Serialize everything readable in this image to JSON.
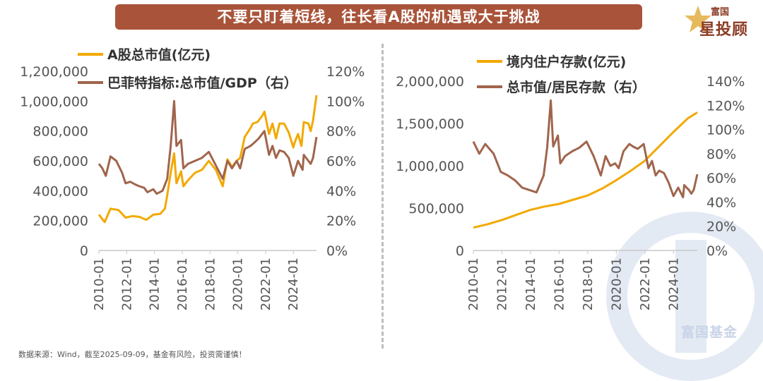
{
  "header": {
    "title": "不要只盯着短线，往长看A股的机遇或大于挑战",
    "logo_top": "富国",
    "logo_bottom": "星投顾"
  },
  "footer": {
    "source": "数据来源：Wind，截至2025-09-09，基金有风险，投资需谨慎！",
    "watermark": "富国基金"
  },
  "colors": {
    "gold": "#f2a900",
    "brown": "#a0654c",
    "axis": "#c8c8c8",
    "tick_text": "#555555",
    "legend_text": "#333333"
  },
  "chart_data": [
    {
      "type": "line",
      "x_ticks": [
        "2010-01",
        "2012-01",
        "2014-01",
        "2016-01",
        "2018-01",
        "2020-01",
        "2022-01",
        "2024-01"
      ],
      "x_range": [
        "2010-01",
        "2025-09"
      ],
      "y_left": {
        "ticks": [
          "0",
          "200,000",
          "400,000",
          "600,000",
          "800,000",
          "1,000,000",
          "1,200,000"
        ],
        "range": [
          0,
          1200000
        ]
      },
      "y_right": {
        "ticks": [
          "0%",
          "20%",
          "40%",
          "60%",
          "80%",
          "100%",
          "120%"
        ],
        "range": [
          0,
          1.2
        ]
      },
      "series": [
        {
          "name": "A股总市值(亿元)",
          "axis": "left",
          "color": "gold",
          "points": [
            [
              "2010-01",
              240000
            ],
            [
              "2010-06",
              190000
            ],
            [
              "2010-11",
              280000
            ],
            [
              "2011-06",
              270000
            ],
            [
              "2011-12",
              220000
            ],
            [
              "2012-06",
              230000
            ],
            [
              "2012-12",
              225000
            ],
            [
              "2013-06",
              205000
            ],
            [
              "2013-12",
              240000
            ],
            [
              "2014-06",
              245000
            ],
            [
              "2014-10",
              280000
            ],
            [
              "2014-12",
              370000
            ],
            [
              "2015-03",
              520000
            ],
            [
              "2015-06",
              650000
            ],
            [
              "2015-08",
              450000
            ],
            [
              "2015-12",
              530000
            ],
            [
              "2016-02",
              430000
            ],
            [
              "2016-06",
              470000
            ],
            [
              "2016-12",
              520000
            ],
            [
              "2017-06",
              540000
            ],
            [
              "2017-12",
              600000
            ],
            [
              "2018-06",
              540000
            ],
            [
              "2018-12",
              430000
            ],
            [
              "2019-04",
              610000
            ],
            [
              "2019-08",
              560000
            ],
            [
              "2019-12",
              600000
            ],
            [
              "2020-03",
              620000
            ],
            [
              "2020-07",
              760000
            ],
            [
              "2020-12",
              820000
            ],
            [
              "2021-02",
              850000
            ],
            [
              "2021-06",
              860000
            ],
            [
              "2021-10",
              900000
            ],
            [
              "2021-12",
              930000
            ],
            [
              "2022-04",
              780000
            ],
            [
              "2022-07",
              850000
            ],
            [
              "2022-10",
              750000
            ],
            [
              "2023-01",
              850000
            ],
            [
              "2023-05",
              850000
            ],
            [
              "2023-09",
              790000
            ],
            [
              "2024-01",
              690000
            ],
            [
              "2024-02",
              720000
            ],
            [
              "2024-05",
              780000
            ],
            [
              "2024-08",
              700000
            ],
            [
              "2024-10",
              860000
            ],
            [
              "2025-02",
              850000
            ],
            [
              "2025-04",
              800000
            ],
            [
              "2025-06",
              870000
            ],
            [
              "2025-09",
              1040000
            ]
          ]
        },
        {
          "name": "巴菲特指标:总市值/GDP（右）",
          "axis": "right",
          "color": "brown",
          "points": [
            [
              "2010-01",
              0.58
            ],
            [
              "2010-04",
              0.55
            ],
            [
              "2010-07",
              0.5
            ],
            [
              "2010-11",
              0.63
            ],
            [
              "2011-04",
              0.6
            ],
            [
              "2011-09",
              0.52
            ],
            [
              "2011-12",
              0.45
            ],
            [
              "2012-04",
              0.46
            ],
            [
              "2012-09",
              0.44
            ],
            [
              "2012-12",
              0.43
            ],
            [
              "2013-04",
              0.42
            ],
            [
              "2013-07",
              0.39
            ],
            [
              "2013-12",
              0.41
            ],
            [
              "2014-03",
              0.38
            ],
            [
              "2014-08",
              0.4
            ],
            [
              "2014-12",
              0.48
            ],
            [
              "2015-03",
              0.7
            ],
            [
              "2015-06",
              1.0
            ],
            [
              "2015-08",
              0.7
            ],
            [
              "2015-12",
              0.74
            ],
            [
              "2016-02",
              0.55
            ],
            [
              "2016-06",
              0.58
            ],
            [
              "2016-12",
              0.6
            ],
            [
              "2017-06",
              0.62
            ],
            [
              "2017-12",
              0.66
            ],
            [
              "2018-06",
              0.57
            ],
            [
              "2018-12",
              0.48
            ],
            [
              "2019-04",
              0.6
            ],
            [
              "2019-08",
              0.55
            ],
            [
              "2019-12",
              0.6
            ],
            [
              "2020-03",
              0.55
            ],
            [
              "2020-07",
              0.68
            ],
            [
              "2020-12",
              0.7
            ],
            [
              "2021-03",
              0.72
            ],
            [
              "2021-07",
              0.75
            ],
            [
              "2021-12",
              0.8
            ],
            [
              "2022-04",
              0.64
            ],
            [
              "2022-07",
              0.7
            ],
            [
              "2022-10",
              0.62
            ],
            [
              "2023-01",
              0.67
            ],
            [
              "2023-05",
              0.66
            ],
            [
              "2023-09",
              0.62
            ],
            [
              "2024-01",
              0.5
            ],
            [
              "2024-05",
              0.6
            ],
            [
              "2024-09",
              0.54
            ],
            [
              "2024-10",
              0.64
            ],
            [
              "2025-02",
              0.6
            ],
            [
              "2025-04",
              0.58
            ],
            [
              "2025-06",
              0.62
            ],
            [
              "2025-09",
              0.76
            ]
          ]
        }
      ]
    },
    {
      "type": "line",
      "x_ticks": [
        "2010-01",
        "2012-01",
        "2014-01",
        "2016-01",
        "2018-01",
        "2020-01",
        "2022-01",
        "2024-01"
      ],
      "x_range": [
        "2010-01",
        "2025-09"
      ],
      "y_left": {
        "ticks": [
          "0",
          "500,000",
          "1,000,000",
          "1,500,000",
          "2,000,000"
        ],
        "range": [
          0,
          2000000
        ]
      },
      "y_right": {
        "ticks": [
          "0%",
          "20%",
          "40%",
          "60%",
          "80%",
          "100%",
          "120%",
          "140%"
        ],
        "range": [
          0,
          1.4
        ]
      },
      "series": [
        {
          "name": "境内住户存款(亿元)",
          "axis": "left",
          "color": "gold",
          "points": [
            [
              "2010-01",
              270000
            ],
            [
              "2011-01",
              310000
            ],
            [
              "2012-01",
              360000
            ],
            [
              "2013-01",
              420000
            ],
            [
              "2014-01",
              480000
            ],
            [
              "2015-01",
              520000
            ],
            [
              "2016-01",
              550000
            ],
            [
              "2017-01",
              600000
            ],
            [
              "2018-01",
              650000
            ],
            [
              "2019-01",
              730000
            ],
            [
              "2020-01",
              830000
            ],
            [
              "2021-01",
              940000
            ],
            [
              "2022-01",
              1060000
            ],
            [
              "2023-01",
              1230000
            ],
            [
              "2024-01",
              1400000
            ],
            [
              "2025-01",
              1560000
            ],
            [
              "2025-09",
              1630000
            ]
          ]
        },
        {
          "name": "总市值/居民存款（右）",
          "axis": "right",
          "color": "brown",
          "points": [
            [
              "2010-01",
              0.9
            ],
            [
              "2010-06",
              0.8
            ],
            [
              "2010-11",
              0.88
            ],
            [
              "2011-06",
              0.8
            ],
            [
              "2011-12",
              0.65
            ],
            [
              "2012-06",
              0.62
            ],
            [
              "2012-12",
              0.58
            ],
            [
              "2013-06",
              0.52
            ],
            [
              "2013-12",
              0.5
            ],
            [
              "2014-06",
              0.48
            ],
            [
              "2014-12",
              0.62
            ],
            [
              "2015-03",
              0.85
            ],
            [
              "2015-06",
              1.24
            ],
            [
              "2015-08",
              0.86
            ],
            [
              "2015-12",
              0.95
            ],
            [
              "2016-02",
              0.72
            ],
            [
              "2016-06",
              0.78
            ],
            [
              "2016-12",
              0.82
            ],
            [
              "2017-06",
              0.85
            ],
            [
              "2017-12",
              0.9
            ],
            [
              "2018-06",
              0.78
            ],
            [
              "2018-12",
              0.62
            ],
            [
              "2019-04",
              0.78
            ],
            [
              "2019-08",
              0.7
            ],
            [
              "2019-12",
              0.72
            ],
            [
              "2020-03",
              0.68
            ],
            [
              "2020-07",
              0.82
            ],
            [
              "2020-12",
              0.88
            ],
            [
              "2021-03",
              0.86
            ],
            [
              "2021-07",
              0.84
            ],
            [
              "2021-12",
              0.88
            ],
            [
              "2022-04",
              0.68
            ],
            [
              "2022-07",
              0.74
            ],
            [
              "2022-10",
              0.62
            ],
            [
              "2023-01",
              0.66
            ],
            [
              "2023-05",
              0.64
            ],
            [
              "2023-09",
              0.56
            ],
            [
              "2024-01",
              0.45
            ],
            [
              "2024-05",
              0.52
            ],
            [
              "2024-09",
              0.44
            ],
            [
              "2024-10",
              0.54
            ],
            [
              "2025-02",
              0.5
            ],
            [
              "2025-04",
              0.47
            ],
            [
              "2025-06",
              0.5
            ],
            [
              "2025-09",
              0.63
            ]
          ]
        }
      ]
    }
  ]
}
